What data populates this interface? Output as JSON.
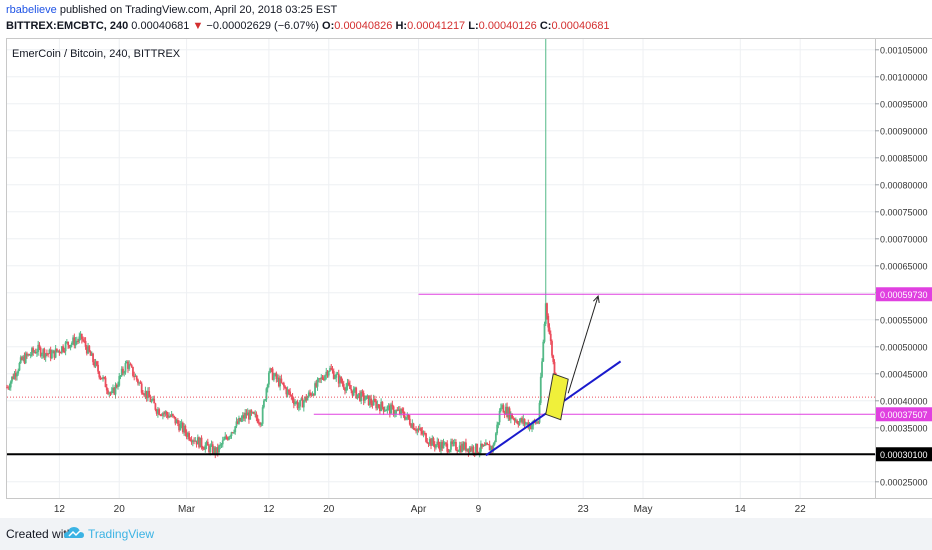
{
  "header": {
    "author": "rbabelieve",
    "published": " published on TradingView.com, April 20, 2018 03:25 EST",
    "symbol": "BITTREX:EMCBTC, 240",
    "last": " 0.00040681 ",
    "change_arrow": "▼",
    "change": " −0.00002629 (−6.07%) ",
    "o_label": "O:",
    "o_value": "0.00040826",
    "h_label": " H:",
    "h_value": "0.00041217",
    "l_label": " L:",
    "l_value": "0.00040126",
    "c_label": " C:",
    "c_value": "0.00040681"
  },
  "symbol_label": "EmerCoin / Bitcoin, 240, BITTREX",
  "footer": {
    "created": "Created with",
    "brand": "TradingView"
  },
  "colors": {
    "up": "#53b987",
    "down": "#eb4d5c",
    "magenta": "#e040e0",
    "trend": "#1a1acc",
    "highlight": "#f0f03a"
  },
  "chart_data": {
    "type": "candlestick",
    "y_ticks": [
      "0.00025000",
      "0.00030000",
      "0.00035000",
      "0.00040000",
      "0.00045000",
      "0.00050000",
      "0.00055000",
      "0.00060000",
      "0.00065000",
      "0.00070000",
      "0.00075000",
      "0.00080000",
      "0.00085000",
      "0.00090000",
      "0.00095000",
      "0.00100000",
      "0.00105000"
    ],
    "y_tick_values": [
      0.00025,
      0.0003,
      0.00035,
      0.0004,
      0.00045,
      0.0005,
      0.00055,
      0.0006,
      0.00065,
      0.0007,
      0.00075,
      0.0008,
      0.00085,
      0.0009,
      0.00095,
      0.001,
      0.00105
    ],
    "x_ticks": [
      "12",
      "20",
      "Mar",
      "12",
      "20",
      "Apr",
      "9",
      "23",
      "May",
      "14",
      "22"
    ],
    "x_tick_dates": [
      "2018-02-12",
      "2018-02-20",
      "2018-03-01",
      "2018-03-12",
      "2018-03-20",
      "2018-04-01",
      "2018-04-09",
      "2018-04-23",
      "2018-05-01",
      "2018-05-14",
      "2018-05-22"
    ],
    "y_range": [
      0.00022,
      0.00107
    ],
    "x_range": [
      "2018-02-05",
      "2018-06-01"
    ],
    "price_path": [
      [
        "2018-02-05",
        0.000425
      ],
      [
        "2018-02-07",
        0.000475
      ],
      [
        "2018-02-09",
        0.000495
      ],
      [
        "2018-02-11",
        0.000485
      ],
      [
        "2018-02-13",
        0.000505
      ],
      [
        "2018-02-15",
        0.000515
      ],
      [
        "2018-02-17",
        0.00046
      ],
      [
        "2018-02-19",
        0.00041
      ],
      [
        "2018-02-21",
        0.00047
      ],
      [
        "2018-02-23",
        0.000425
      ],
      [
        "2018-02-25",
        0.000385
      ],
      [
        "2018-02-27",
        0.00037
      ],
      [
        "2018-03-01",
        0.00034
      ],
      [
        "2018-03-03",
        0.00032
      ],
      [
        "2018-03-05",
        0.000305
      ],
      [
        "2018-03-07",
        0.000345
      ],
      [
        "2018-03-09",
        0.000375
      ],
      [
        "2018-03-11",
        0.000365
      ],
      [
        "2018-03-12",
        0.000455
      ],
      [
        "2018-03-14",
        0.000425
      ],
      [
        "2018-03-16",
        0.00039
      ],
      [
        "2018-03-18",
        0.00042
      ],
      [
        "2018-03-20",
        0.00046
      ],
      [
        "2018-03-22",
        0.00043
      ],
      [
        "2018-03-24",
        0.00041
      ],
      [
        "2018-03-26",
        0.000395
      ],
      [
        "2018-03-28",
        0.000385
      ],
      [
        "2018-03-30",
        0.000375
      ],
      [
        "2018-04-01",
        0.000345
      ],
      [
        "2018-04-03",
        0.00032
      ],
      [
        "2018-04-05",
        0.000315
      ],
      [
        "2018-04-07",
        0.000315
      ],
      [
        "2018-04-09",
        0.00031
      ],
      [
        "2018-04-11",
        0.000315
      ],
      [
        "2018-04-12",
        0.00039
      ],
      [
        "2018-04-14",
        0.000365
      ],
      [
        "2018-04-16",
        0.000355
      ],
      [
        "2018-04-17",
        0.000362
      ],
      [
        "2018-04-18",
        0.00058
      ],
      [
        "2018-04-19",
        0.00047
      ],
      [
        "2018-04-20",
        0.000407
      ]
    ],
    "annotations": {
      "spike_high": [
        "2018-04-18",
        0.00107
      ],
      "resistance": 0.0005973,
      "resistance_label": "0.00059730",
      "support": 0.00037507,
      "support_label": "0.00037507",
      "floor": 0.000301,
      "floor_label": "0.00030100",
      "last_price": 0.00040681,
      "trendline": [
        [
          "2018-04-10",
          0.000299
        ],
        [
          "2018-04-28",
          0.000473
        ]
      ],
      "arrow": [
        [
          "2018-04-21",
          0.000414
        ],
        [
          "2018-04-25",
          0.000594
        ]
      ],
      "box": [
        [
          "2018-04-18",
          0.000375
        ],
        [
          "2018-04-20",
          0.000365
        ],
        [
          "2018-04-21",
          0.00044
        ],
        [
          "2018-04-19",
          0.00045
        ]
      ]
    }
  }
}
